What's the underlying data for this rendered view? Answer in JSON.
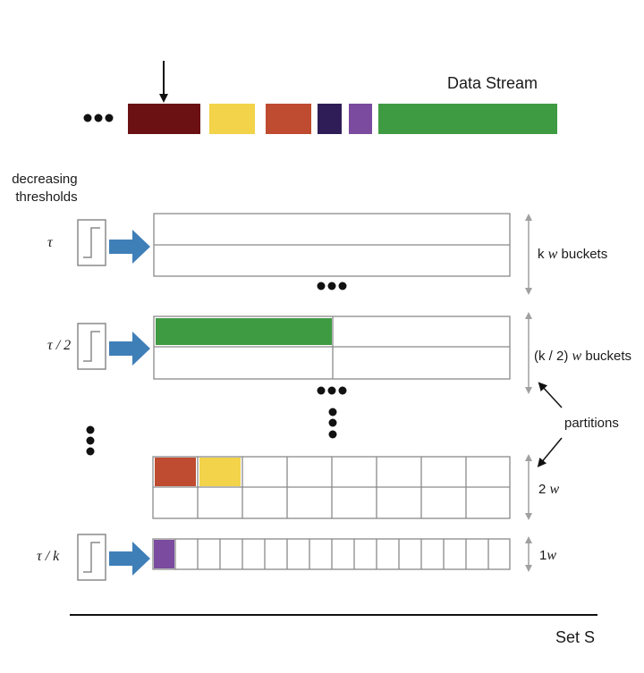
{
  "colors": {
    "maroon": "#6b1114",
    "yellow": "#f2d34a",
    "rust": "#bf4b30",
    "navy": "#2e1d57",
    "purple": "#7a4b9e",
    "green": "#3f9b42",
    "arrow_blue": "#3f7fb8",
    "outline": "#8a8a8a",
    "dimension": "#a0a0a0"
  },
  "stream": {
    "label": "Data Stream",
    "items": [
      "maroon",
      "yellow",
      "rust",
      "navy",
      "purple",
      "green"
    ]
  },
  "thresholds_label": [
    "decreasing",
    "thresholds"
  ],
  "levels": [
    {
      "tau": "τ",
      "size_prefix": "k",
      "size_var": "w",
      "size_suffix": "buckets",
      "filled": []
    },
    {
      "tau": "τ / 2",
      "size_prefix": "(k / 2)",
      "size_var": "w",
      "size_suffix": "buckets",
      "filled": [
        "green"
      ]
    },
    {
      "tau": "",
      "size_prefix": "2",
      "size_var": "w",
      "size_suffix": "",
      "filled": [
        "rust",
        "yellow"
      ]
    },
    {
      "tau": "τ / k",
      "size_prefix": "1",
      "size_var": "w",
      "size_suffix": "",
      "filled": [
        "purple"
      ]
    }
  ],
  "partitions_label": "partitions",
  "set_label": "Set S"
}
